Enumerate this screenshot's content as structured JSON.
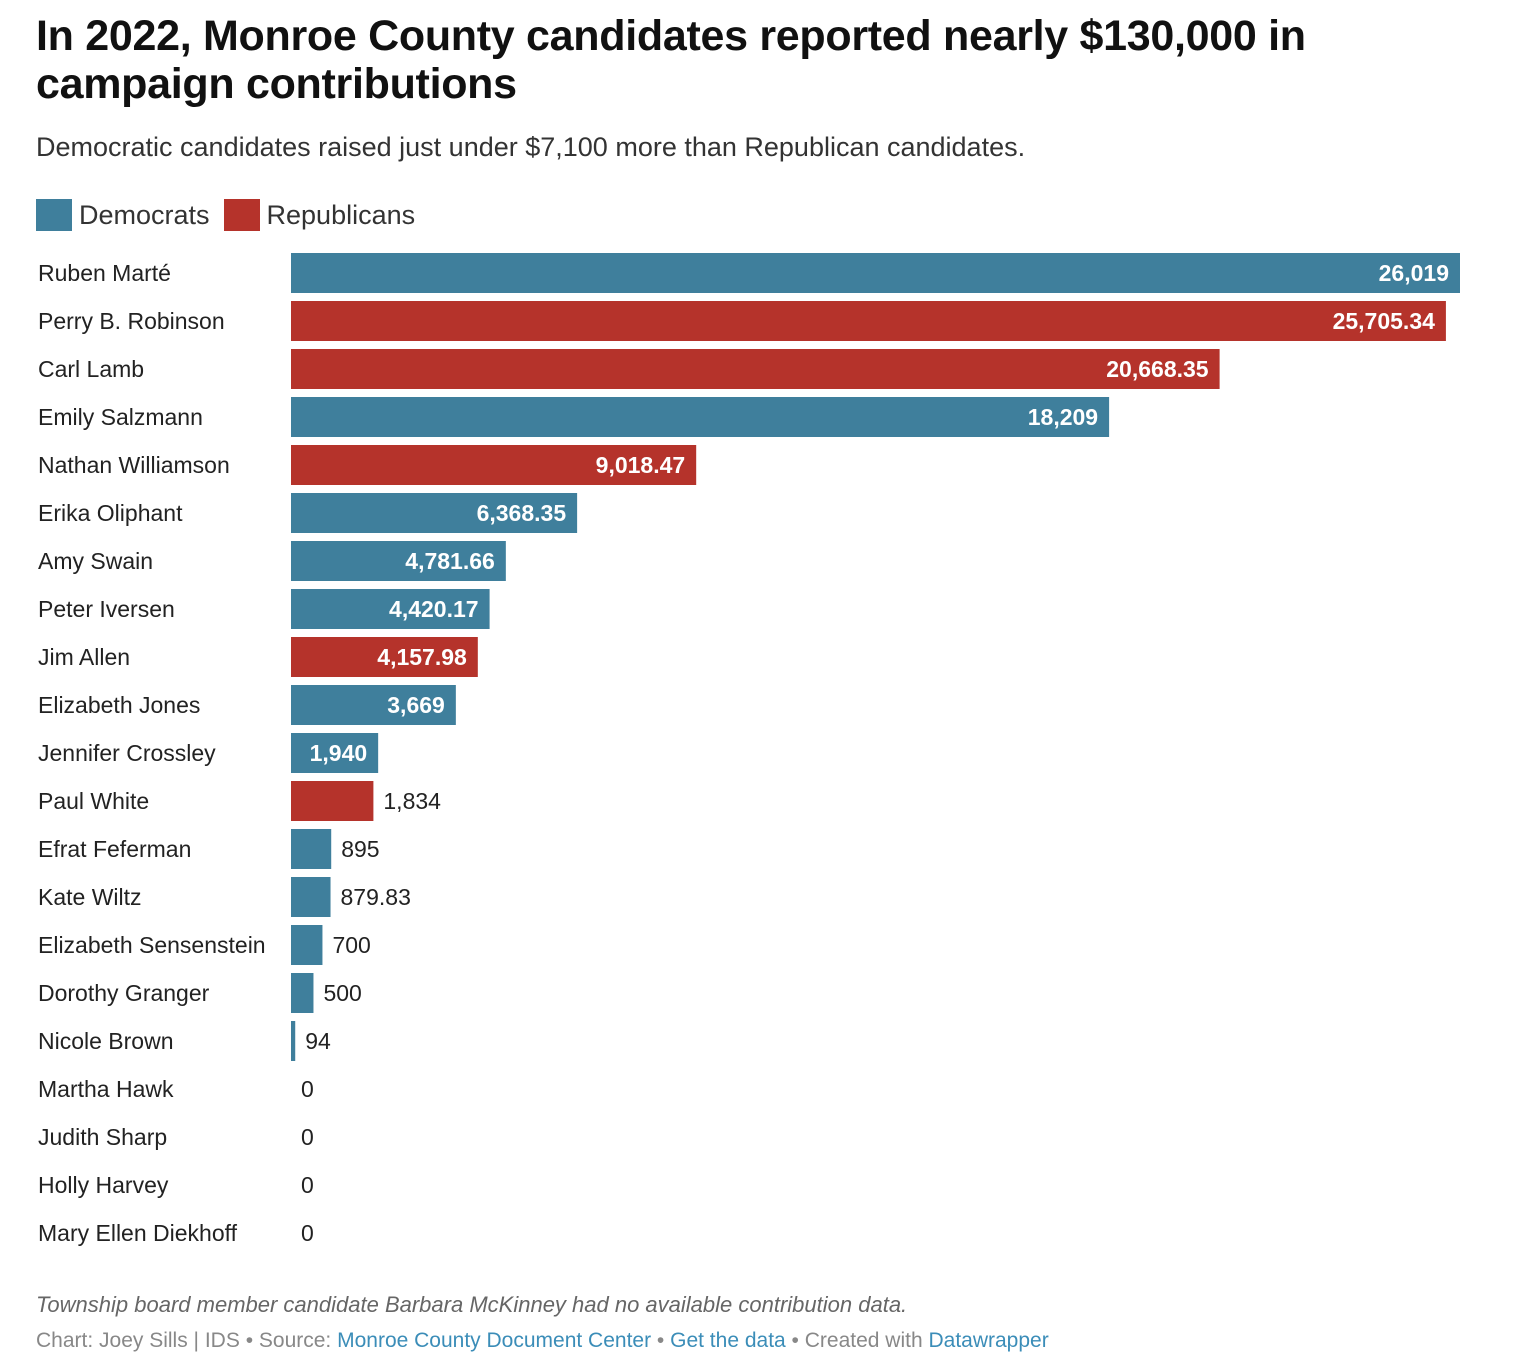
{
  "header": {
    "title": "In 2022, Monroe County candidates reported nearly $130,000 in campaign contributions",
    "subtitle": "Democratic candidates raised just under $7,100 more than Republican candidates."
  },
  "colors": {
    "democrats": "#3f7f9c",
    "republicans": "#b5332b"
  },
  "chart_data": {
    "type": "bar",
    "orientation": "horizontal",
    "legend": [
      {
        "name": "Democrats",
        "color": "#3f7f9c"
      },
      {
        "name": "Republicans",
        "color": "#b5332b"
      }
    ],
    "legend_position": "top-left",
    "grid": false,
    "xlim": [
      0,
      26019
    ],
    "categories": [
      "Ruben Marté",
      "Perry B. Robinson",
      "Carl Lamb",
      "Emily Salzmann",
      "Nathan Williamson",
      "Erika Oliphant",
      "Amy Swain",
      "Peter Iversen",
      "Jim Allen",
      "Elizabeth Jones",
      "Jennifer Crossley",
      "Paul White",
      "Efrat Feferman",
      "Kate Wiltz",
      "Elizabeth Sensenstein",
      "Dorothy Granger",
      "Nicole Brown",
      "Martha Hawk",
      "Judith Sharp",
      "Holly Harvey",
      "Mary Ellen Diekhoff"
    ],
    "values": [
      26019,
      25705.34,
      20668.35,
      18209,
      9018.47,
      6368.35,
      4781.66,
      4420.17,
      4157.98,
      3669,
      1940,
      1834,
      895,
      879.83,
      700,
      500,
      94,
      0,
      0,
      0,
      0
    ],
    "labels": [
      "26,019",
      "25,705.34",
      "20,668.35",
      "18,209",
      "9,018.47",
      "6,368.35",
      "4,781.66",
      "4,420.17",
      "4,157.98",
      "3,669",
      "1,940",
      "1,834",
      "895",
      "879.83",
      "700",
      "500",
      "94",
      "0",
      "0",
      "0",
      "0"
    ],
    "party": [
      "Democrats",
      "Republicans",
      "Republicans",
      "Democrats",
      "Republicans",
      "Democrats",
      "Democrats",
      "Democrats",
      "Republicans",
      "Democrats",
      "Democrats",
      "Republicans",
      "Democrats",
      "Democrats",
      "Democrats",
      "Democrats",
      "Democrats",
      "Democrats",
      "Democrats",
      "Democrats",
      "Democrats"
    ]
  },
  "notes": "Township board member candidate Barbara McKinney had no available contribution data.",
  "footer": {
    "chart_credit": "Chart: Joey Sills | IDS",
    "sep1": " • Source: ",
    "source_link": "Monroe County Document Center",
    "sep2": " • ",
    "data_link": "Get the data",
    "sep3": " • Created with ",
    "tool_link": "Datawrapper"
  }
}
